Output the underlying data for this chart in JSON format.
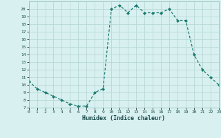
{
  "x": [
    0,
    1,
    2,
    3,
    4,
    5,
    6,
    7,
    8,
    9,
    10,
    11,
    12,
    13,
    14,
    15,
    16,
    17,
    18,
    19,
    20,
    21,
    22,
    23
  ],
  "y": [
    10.5,
    9.5,
    9.0,
    8.5,
    8.0,
    7.5,
    7.2,
    7.2,
    9.0,
    9.5,
    20.0,
    20.5,
    19.5,
    20.5,
    19.5,
    19.5,
    19.5,
    20.0,
    18.5,
    18.5,
    14.0,
    12.0,
    11.0,
    10.0
  ],
  "xlabel": "Humidex (Indice chaleur)",
  "xlim": [
    0,
    23
  ],
  "ylim": [
    7,
    21
  ],
  "yticks": [
    7,
    8,
    9,
    10,
    11,
    12,
    13,
    14,
    15,
    16,
    17,
    18,
    19,
    20
  ],
  "xticks": [
    0,
    1,
    2,
    3,
    4,
    5,
    6,
    7,
    8,
    9,
    10,
    11,
    12,
    13,
    14,
    15,
    16,
    17,
    18,
    19,
    20,
    21,
    22,
    23
  ],
  "line_color": "#1a7a6e",
  "bg_color": "#d8f0f0",
  "grid_color": "#b8d8d8",
  "marker": "D",
  "markersize": 2.0,
  "linewidth": 0.9
}
